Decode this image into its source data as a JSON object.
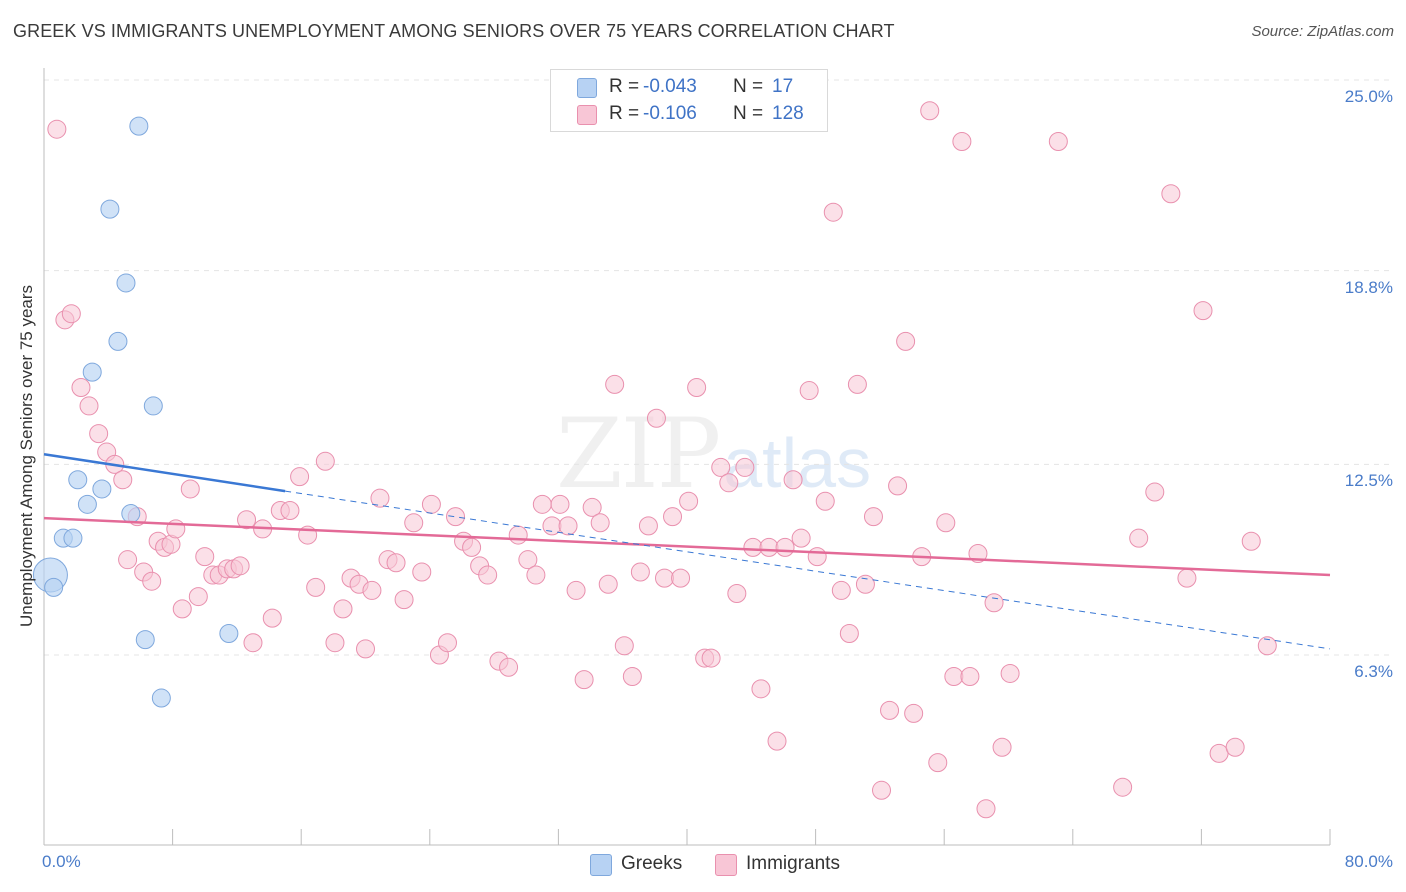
{
  "title": "GREEK VS IMMIGRANTS UNEMPLOYMENT AMONG SENIORS OVER 75 YEARS CORRELATION CHART",
  "source": "Source: ZipAtlas.com",
  "watermark": {
    "zip": "ZIP",
    "atlas": "atlas"
  },
  "legend": {
    "greeks": {
      "r_label": "R =",
      "r_value": "-0.043",
      "n_label": "N =",
      "n_value": "17"
    },
    "immigrants": {
      "r_label": "R =",
      "r_value": "-0.106",
      "n_label": "N =",
      "n_value": "128"
    }
  },
  "colors": {
    "greeks_fill": "#b7d2f3",
    "greeks_stroke": "#7fa8dd",
    "greeks_line": "#3a78d4",
    "immigrants_fill": "#f8c6d6",
    "immigrants_stroke": "#e990ae",
    "immigrants_line": "#e36a97",
    "tick_text": "#4a7cc9",
    "grid": "#e4e4e4"
  },
  "chart_data": {
    "type": "scatter",
    "title": "GREEK VS IMMIGRANTS UNEMPLOYMENT AMONG SENIORS OVER 75 YEARS CORRELATION CHART",
    "xlabel": "",
    "ylabel": "Unemployment Among Seniors over 75 years",
    "xlim": [
      0,
      80
    ],
    "ylim": [
      0,
      25.6
    ],
    "x_tick_labels": [
      "0.0%",
      "80.0%"
    ],
    "y_ticks": [
      6.3,
      12.5,
      18.8,
      25.0
    ],
    "y_tick_labels": [
      "6.3%",
      "12.5%",
      "18.8%",
      "25.0%"
    ],
    "grid": true,
    "legend_position": "top-center",
    "series": [
      {
        "name": "Greeks",
        "r": -0.043,
        "n": 17,
        "trend": {
          "solid": [
            [
              0,
              12.83
            ],
            [
              15,
              11.63
            ]
          ],
          "dashed": [
            [
              15,
              11.63
            ],
            [
              80,
              6.5
            ]
          ]
        },
        "points": [
          [
            0.4,
            8.9,
            "large"
          ],
          [
            0.6,
            8.5
          ],
          [
            1.2,
            10.1
          ],
          [
            1.8,
            10.1
          ],
          [
            2.1,
            12.0
          ],
          [
            2.7,
            11.2
          ],
          [
            3.6,
            11.7
          ],
          [
            3.0,
            15.5
          ],
          [
            4.1,
            20.8
          ],
          [
            4.6,
            16.5
          ],
          [
            5.1,
            18.4
          ],
          [
            5.4,
            10.9
          ],
          [
            5.9,
            23.5
          ],
          [
            6.3,
            6.8
          ],
          [
            6.8,
            14.4
          ],
          [
            7.3,
            4.9
          ],
          [
            11.5,
            7.0
          ]
        ]
      },
      {
        "name": "Immigrants",
        "r": -0.106,
        "n": 128,
        "trend": {
          "solid": [
            [
              0,
              10.75
            ],
            [
              80,
              8.9
            ]
          ]
        },
        "points": [
          [
            0.8,
            23.4
          ],
          [
            1.3,
            17.2
          ],
          [
            1.7,
            17.4
          ],
          [
            2.3,
            15.0
          ],
          [
            2.8,
            14.4
          ],
          [
            3.4,
            13.5
          ],
          [
            3.9,
            12.9
          ],
          [
            4.4,
            12.5
          ],
          [
            4.9,
            12.0
          ],
          [
            5.2,
            9.4
          ],
          [
            5.8,
            10.8
          ],
          [
            6.2,
            9.0
          ],
          [
            6.7,
            8.7
          ],
          [
            7.1,
            10.0
          ],
          [
            7.5,
            9.8
          ],
          [
            7.9,
            9.9
          ],
          [
            8.2,
            10.4
          ],
          [
            8.6,
            7.8
          ],
          [
            9.1,
            11.7
          ],
          [
            9.6,
            8.2
          ],
          [
            10.0,
            9.5
          ],
          [
            10.5,
            8.9
          ],
          [
            10.9,
            8.9
          ],
          [
            11.4,
            9.1
          ],
          [
            11.8,
            9.1
          ],
          [
            12.2,
            9.2
          ],
          [
            12.6,
            10.7
          ],
          [
            13.0,
            6.7
          ],
          [
            13.6,
            10.4
          ],
          [
            14.2,
            7.5
          ],
          [
            14.7,
            11.0
          ],
          [
            15.3,
            11.0
          ],
          [
            15.9,
            12.1
          ],
          [
            16.4,
            10.2
          ],
          [
            16.9,
            8.5
          ],
          [
            17.5,
            12.6
          ],
          [
            18.1,
            6.7
          ],
          [
            18.6,
            7.8
          ],
          [
            19.1,
            8.8
          ],
          [
            19.6,
            8.6
          ],
          [
            20.0,
            6.5
          ],
          [
            20.4,
            8.4
          ],
          [
            20.9,
            11.4
          ],
          [
            21.4,
            9.4
          ],
          [
            21.9,
            9.3
          ],
          [
            22.4,
            8.1
          ],
          [
            23.0,
            10.6
          ],
          [
            23.5,
            9.0
          ],
          [
            24.1,
            11.2
          ],
          [
            24.6,
            6.3
          ],
          [
            25.1,
            6.7
          ],
          [
            25.6,
            10.8
          ],
          [
            26.1,
            10.0
          ],
          [
            26.6,
            9.8
          ],
          [
            27.1,
            9.2
          ],
          [
            27.6,
            8.9
          ],
          [
            28.3,
            6.1
          ],
          [
            28.9,
            5.9
          ],
          [
            29.5,
            10.2
          ],
          [
            30.1,
            9.4
          ],
          [
            30.6,
            8.9
          ],
          [
            31.0,
            11.2
          ],
          [
            31.6,
            10.5
          ],
          [
            32.1,
            11.2
          ],
          [
            32.6,
            10.5
          ],
          [
            33.1,
            8.4
          ],
          [
            33.6,
            5.5
          ],
          [
            34.1,
            11.1
          ],
          [
            34.6,
            10.6
          ],
          [
            35.1,
            8.6
          ],
          [
            35.5,
            15.1
          ],
          [
            36.1,
            6.6
          ],
          [
            36.6,
            5.6
          ],
          [
            37.1,
            9.0
          ],
          [
            37.6,
            10.5
          ],
          [
            38.1,
            14.0
          ],
          [
            38.6,
            8.8
          ],
          [
            39.1,
            10.8
          ],
          [
            39.6,
            8.8
          ],
          [
            40.1,
            11.3
          ],
          [
            40.6,
            15.0
          ],
          [
            41.1,
            6.2
          ],
          [
            41.5,
            6.2
          ],
          [
            42.1,
            12.4
          ],
          [
            42.6,
            11.9
          ],
          [
            43.1,
            8.3
          ],
          [
            43.6,
            12.4
          ],
          [
            44.1,
            9.8
          ],
          [
            44.6,
            5.2
          ],
          [
            45.1,
            9.8
          ],
          [
            45.6,
            3.5
          ],
          [
            46.1,
            9.8
          ],
          [
            46.6,
            12.0
          ],
          [
            47.1,
            10.1
          ],
          [
            47.6,
            14.9
          ],
          [
            48.1,
            9.5
          ],
          [
            48.6,
            11.3
          ],
          [
            49.1,
            20.7
          ],
          [
            49.6,
            8.4
          ],
          [
            50.1,
            7.0
          ],
          [
            50.6,
            15.1
          ],
          [
            51.1,
            8.6
          ],
          [
            51.6,
            10.8
          ],
          [
            52.1,
            1.9
          ],
          [
            52.6,
            4.5
          ],
          [
            53.1,
            11.8
          ],
          [
            53.6,
            16.5
          ],
          [
            54.1,
            4.4
          ],
          [
            54.6,
            9.5
          ],
          [
            55.1,
            24.0
          ],
          [
            55.6,
            2.8
          ],
          [
            56.1,
            10.6
          ],
          [
            56.6,
            5.6
          ],
          [
            57.1,
            23.0
          ],
          [
            57.6,
            5.6
          ],
          [
            58.1,
            9.6
          ],
          [
            58.6,
            1.3
          ],
          [
            59.1,
            8.0
          ],
          [
            59.6,
            3.3
          ],
          [
            60.1,
            5.7
          ],
          [
            63.1,
            23.0
          ],
          [
            67.1,
            2.0
          ],
          [
            68.1,
            10.1
          ],
          [
            69.1,
            11.6
          ],
          [
            70.1,
            21.3
          ],
          [
            71.1,
            8.8
          ],
          [
            72.1,
            17.5
          ],
          [
            73.1,
            3.1
          ],
          [
            74.1,
            3.3
          ],
          [
            75.1,
            10.0
          ],
          [
            76.1,
            6.6
          ]
        ]
      }
    ]
  }
}
